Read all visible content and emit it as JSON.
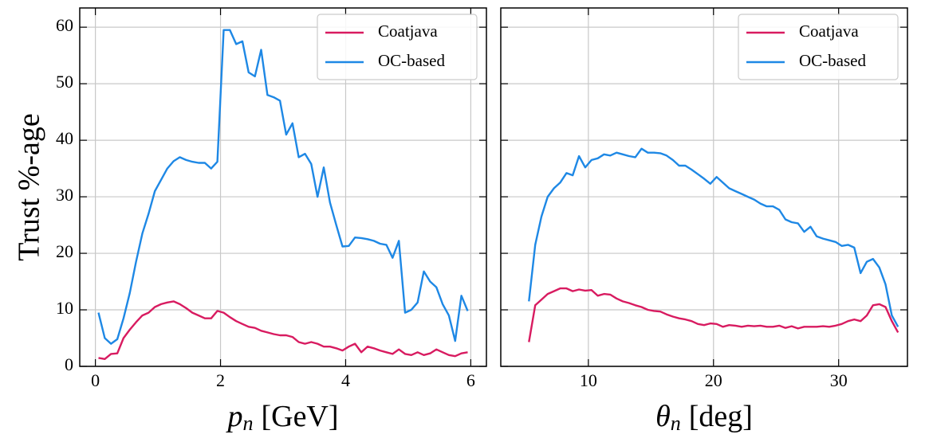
{
  "chart_data": [
    {
      "type": "line",
      "xlabel": {
        "symbol": "p",
        "subscript": "n",
        "unit": "[GeV]"
      },
      "ylabel": "Trust %-age",
      "xlim": [
        -0.25,
        6.25
      ],
      "ylim": [
        0,
        63.4
      ],
      "xticks": [
        0,
        2,
        4,
        6
      ],
      "yticks": [
        0,
        10,
        20,
        30,
        40,
        50,
        60
      ],
      "grid": true,
      "legend": "upper right",
      "x": [
        0.05,
        0.15,
        0.25,
        0.35,
        0.45,
        0.55,
        0.65,
        0.75,
        0.85,
        0.95,
        1.05,
        1.15,
        1.25,
        1.35,
        1.45,
        1.55,
        1.65,
        1.75,
        1.85,
        1.95,
        2.05,
        2.15,
        2.25,
        2.35,
        2.45,
        2.55,
        2.65,
        2.75,
        2.85,
        2.95,
        3.05,
        3.15,
        3.25,
        3.35,
        3.45,
        3.55,
        3.65,
        3.75,
        3.85,
        3.95,
        4.05,
        4.15,
        4.25,
        4.35,
        4.45,
        4.55,
        4.65,
        4.75,
        4.85,
        4.95,
        5.05,
        5.15,
        5.25,
        5.35,
        5.45,
        5.55,
        5.65,
        5.75,
        5.85,
        5.95
      ],
      "series": [
        {
          "name": "Coatjava",
          "color": "#d81b60",
          "values": [
            1.5,
            1.3,
            2.2,
            2.3,
            5,
            6.5,
            7.8,
            9,
            9.5,
            10.5,
            11,
            11.3,
            11.5,
            11,
            10.3,
            9.5,
            9,
            8.5,
            8.5,
            9.8,
            9.5,
            8.7,
            8,
            7.5,
            7,
            6.8,
            6.3,
            6,
            5.7,
            5.5,
            5.5,
            5.2,
            4.3,
            4,
            4.3,
            4,
            3.5,
            3.5,
            3.2,
            2.8,
            3.5,
            4,
            2.5,
            3.5,
            3.2,
            2.8,
            2.5,
            2.2,
            3,
            2.2,
            2,
            2.5,
            2,
            2.3,
            3,
            2.5,
            2,
            1.8,
            2.3,
            2.5
          ]
        },
        {
          "name": "OC-based",
          "color": "#1e88e5",
          "values": [
            9.5,
            5,
            4,
            4.8,
            8.5,
            13,
            18.5,
            23.5,
            27,
            31,
            33,
            35,
            36.3,
            37,
            36.5,
            36.2,
            36,
            36,
            35,
            36.2,
            59.5,
            59.5,
            57,
            57.5,
            52,
            51.3,
            56,
            48,
            47.6,
            47,
            41,
            43,
            37,
            37.6,
            35.8,
            30,
            35.2,
            29,
            25,
            21.2,
            21.3,
            22.8,
            22.7,
            22.5,
            22.2,
            21.7,
            21.5,
            19.2,
            22.2,
            9.5,
            10,
            11.3,
            16.8,
            15,
            14,
            11,
            9,
            4.5,
            12.5,
            9.8
          ]
        }
      ]
    },
    {
      "type": "line",
      "xlabel": {
        "symbol": "θ",
        "subscript": "n",
        "unit": "[deg]"
      },
      "xlim": [
        3,
        35.5
      ],
      "ylim": [
        0,
        63.4
      ],
      "xticks": [
        10,
        20,
        30
      ],
      "yticks": [
        0,
        10,
        20,
        30,
        40,
        50,
        60
      ],
      "grid": true,
      "legend": "upper right",
      "x": [
        5.25,
        5.75,
        6.25,
        6.75,
        7.25,
        7.75,
        8.25,
        8.75,
        9.25,
        9.75,
        10.25,
        10.75,
        11.25,
        11.75,
        12.25,
        12.75,
        13.25,
        13.75,
        14.25,
        14.75,
        15.25,
        15.75,
        16.25,
        16.75,
        17.25,
        17.75,
        18.25,
        18.75,
        19.25,
        19.75,
        20.25,
        20.75,
        21.25,
        21.75,
        22.25,
        22.75,
        23.25,
        23.75,
        24.25,
        24.75,
        25.25,
        25.75,
        26.25,
        26.75,
        27.25,
        27.75,
        28.25,
        28.75,
        29.25,
        29.75,
        30.25,
        30.75,
        31.25,
        31.75,
        32.25,
        32.75,
        33.25,
        33.75,
        34.25,
        34.75
      ],
      "series": [
        {
          "name": "Coatjava",
          "color": "#d81b60",
          "values": [
            4.3,
            10.8,
            11.8,
            12.8,
            13.3,
            13.8,
            13.8,
            13.3,
            13.6,
            13.4,
            13.5,
            12.5,
            12.8,
            12.7,
            12,
            11.5,
            11.2,
            10.8,
            10.5,
            10,
            9.8,
            9.7,
            9.2,
            8.8,
            8.5,
            8.3,
            8,
            7.5,
            7.3,
            7.6,
            7.5,
            7,
            7.3,
            7.2,
            7,
            7.2,
            7.1,
            7.2,
            7,
            7,
            7.2,
            6.8,
            7.1,
            6.7,
            7,
            7,
            7,
            7.1,
            7,
            7.2,
            7.5,
            8,
            8.3,
            8,
            9,
            10.8,
            11,
            10.5,
            8,
            6
          ]
        },
        {
          "name": "OC-based",
          "color": "#1e88e5",
          "values": [
            11.5,
            21.5,
            26.5,
            30,
            31.5,
            32.5,
            34.2,
            33.8,
            37.2,
            35.2,
            36.5,
            36.8,
            37.5,
            37.3,
            37.8,
            37.5,
            37.2,
            37,
            38.5,
            37.8,
            37.8,
            37.7,
            37.3,
            36.5,
            35.5,
            35.5,
            34.8,
            34,
            33.2,
            32.3,
            33.5,
            32.5,
            31.5,
            31,
            30.5,
            30,
            29.5,
            28.8,
            28.3,
            28.3,
            27.7,
            26,
            25.5,
            25.3,
            23.8,
            24.7,
            23,
            22.6,
            22.3,
            22,
            21.3,
            21.5,
            21,
            16.5,
            18.5,
            19,
            17.5,
            14.5,
            9,
            7
          ]
        }
      ]
    }
  ]
}
